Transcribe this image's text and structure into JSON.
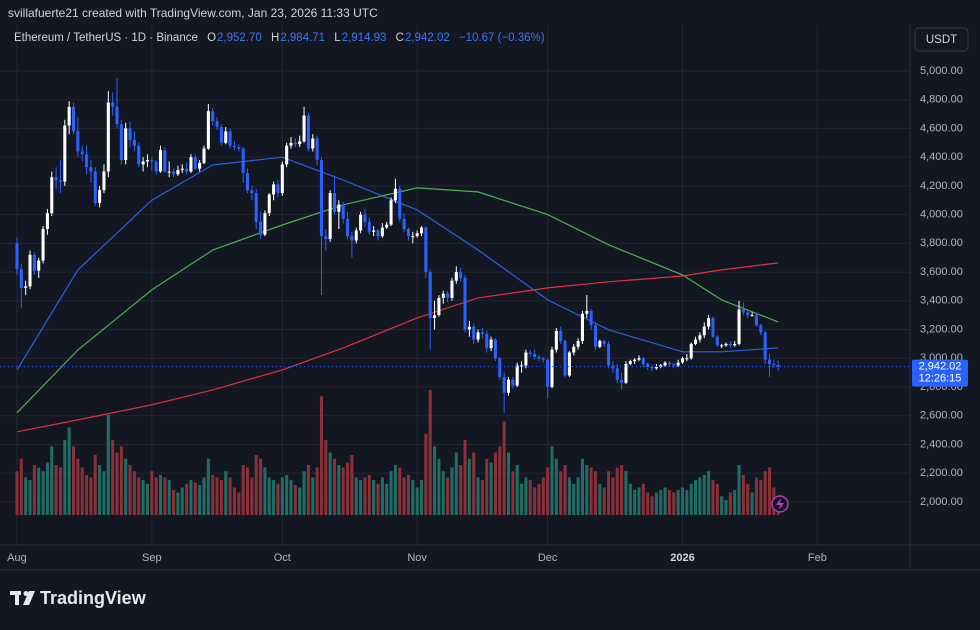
{
  "header": {
    "credit": "svillafuerte21 created with TradingView.com, Jan 23, 2026 11:33 UTC",
    "symbol": "Ethereum / TetherUS · 1D · Binance",
    "o_label": "O",
    "o": "2,952.70",
    "h_label": "H",
    "h": "2,984.71",
    "l_label": "L",
    "l": "2,914.93",
    "c_label": "C",
    "c": "2,942.02",
    "change": "−10.67 (−0.36%)",
    "currency": "USDT",
    "logo": "TradingView"
  },
  "chart_data": {
    "type": "candlestick",
    "up_color": "#ffffff",
    "down_color": "#2962ff",
    "volume_up_color": "#1f6e66",
    "volume_down_color": "#8a3038",
    "xlim": [
      -3.9,
      205.3
    ],
    "ylim": [
      1700,
      5320
    ],
    "vlim": [
      0,
      100
    ],
    "grid": true,
    "xticks": [
      {
        "value": 0,
        "label": "Aug"
      },
      {
        "value": 31,
        "label": "Sep"
      },
      {
        "value": 61,
        "label": "Oct"
      },
      {
        "value": 92,
        "label": "Nov"
      },
      {
        "value": 122,
        "label": "Dec"
      },
      {
        "value": 153,
        "label": "2026"
      },
      {
        "value": 184,
        "label": "Feb"
      }
    ],
    "yticks": [
      {
        "value": 2000,
        "label": "2,000.00"
      },
      {
        "value": 2200,
        "label": "2,200.00"
      },
      {
        "value": 2400,
        "label": "2,400.00"
      },
      {
        "value": 2600,
        "label": "2,600.00"
      },
      {
        "value": 2800,
        "label": "2,800.00"
      },
      {
        "value": 3000,
        "label": "3,000.00"
      },
      {
        "value": 3200,
        "label": "3,200.00"
      },
      {
        "value": 3400,
        "label": "3,400.00"
      },
      {
        "value": 3600,
        "label": "3,600.00"
      },
      {
        "value": 3800,
        "label": "3,800.00"
      },
      {
        "value": 4000,
        "label": "4,000.00"
      },
      {
        "value": 4200,
        "label": "4,200.00"
      },
      {
        "value": 4400,
        "label": "4,400.00"
      },
      {
        "value": 4600,
        "label": "4,600.00"
      },
      {
        "value": 4800,
        "label": "4,800.00"
      },
      {
        "value": 5000,
        "label": "5,000.00"
      }
    ],
    "last_price": {
      "value": 2942.02,
      "label": "2,942.02"
    },
    "countdown": "12:26:15",
    "ohlc": [
      [
        3800,
        3840,
        3580,
        3620
      ],
      [
        3620,
        3660,
        3350,
        3490
      ],
      [
        3490,
        3540,
        3440,
        3500
      ],
      [
        3500,
        3750,
        3480,
        3720
      ],
      [
        3720,
        3740,
        3580,
        3610
      ],
      [
        3610,
        3700,
        3560,
        3680
      ],
      [
        3680,
        3920,
        3660,
        3900
      ],
      [
        3900,
        4040,
        3860,
        4010
      ],
      [
        4010,
        4300,
        3990,
        4260
      ],
      [
        4260,
        4330,
        4180,
        4240
      ],
      [
        4240,
        4380,
        4150,
        4230
      ],
      [
        4230,
        4660,
        4200,
        4620
      ],
      [
        4620,
        4790,
        4560,
        4750
      ],
      [
        4750,
        4780,
        4560,
        4580
      ],
      [
        4580,
        4680,
        4400,
        4440
      ],
      [
        4440,
        4480,
        4370,
        4420
      ],
      [
        4420,
        4480,
        4280,
        4330
      ],
      [
        4330,
        4380,
        4220,
        4300
      ],
      [
        4300,
        4330,
        4060,
        4080
      ],
      [
        4080,
        4200,
        4050,
        4170
      ],
      [
        4170,
        4350,
        4150,
        4300
      ],
      [
        4300,
        4860,
        4260,
        4780
      ],
      [
        4780,
        4850,
        4690,
        4750
      ],
      [
        4750,
        4950,
        4600,
        4630
      ],
      [
        4630,
        4660,
        4350,
        4380
      ],
      [
        4380,
        4640,
        4350,
        4600
      ],
      [
        4600,
        4650,
        4470,
        4520
      ],
      [
        4520,
        4580,
        4440,
        4480
      ],
      [
        4480,
        4500,
        4330,
        4350
      ],
      [
        4350,
        4400,
        4300,
        4370
      ],
      [
        4370,
        4420,
        4330,
        4380
      ],
      [
        4380,
        4400,
        4310,
        4370
      ],
      [
        4370,
        4380,
        4280,
        4300
      ],
      [
        4300,
        4480,
        4290,
        4450
      ],
      [
        4450,
        4470,
        4290,
        4300
      ],
      [
        4300,
        4370,
        4260,
        4300
      ],
      [
        4300,
        4320,
        4260,
        4280
      ],
      [
        4280,
        4340,
        4270,
        4310
      ],
      [
        4310,
        4350,
        4290,
        4320
      ],
      [
        4320,
        4360,
        4280,
        4300
      ],
      [
        4300,
        4420,
        4290,
        4400
      ],
      [
        4400,
        4420,
        4310,
        4320
      ],
      [
        4320,
        4380,
        4300,
        4360
      ],
      [
        4360,
        4480,
        4350,
        4460
      ],
      [
        4460,
        4770,
        4450,
        4720
      ],
      [
        4720,
        4740,
        4620,
        4650
      ],
      [
        4650,
        4680,
        4590,
        4610
      ],
      [
        4610,
        4630,
        4480,
        4500
      ],
      [
        4500,
        4610,
        4490,
        4580
      ],
      [
        4580,
        4600,
        4460,
        4480
      ],
      [
        4480,
        4510,
        4450,
        4470
      ],
      [
        4470,
        4490,
        4440,
        4460
      ],
      [
        4460,
        4470,
        4220,
        4290
      ],
      [
        4290,
        4320,
        4150,
        4170
      ],
      [
        4170,
        4200,
        4100,
        4150
      ],
      [
        4150,
        4180,
        3900,
        3950
      ],
      [
        3950,
        4020,
        3830,
        3860
      ],
      [
        3860,
        4030,
        3850,
        4010
      ],
      [
        4010,
        4150,
        3990,
        4140
      ],
      [
        4140,
        4230,
        4100,
        4210
      ],
      [
        4210,
        4240,
        4120,
        4150
      ],
      [
        4150,
        4370,
        4130,
        4350
      ],
      [
        4350,
        4500,
        4330,
        4480
      ],
      [
        4480,
        4540,
        4460,
        4500
      ],
      [
        4500,
        4530,
        4470,
        4490
      ],
      [
        4490,
        4550,
        4470,
        4510
      ],
      [
        4510,
        4750,
        4500,
        4690
      ],
      [
        4690,
        4710,
        4440,
        4460
      ],
      [
        4460,
        4560,
        4440,
        4530
      ],
      [
        4530,
        4550,
        4340,
        4380
      ],
      [
        4380,
        4400,
        3440,
        3850
      ],
      [
        3850,
        3900,
        3750,
        3830
      ],
      [
        3830,
        4170,
        3810,
        4150
      ],
      [
        4150,
        4270,
        4000,
        4020
      ],
      [
        4020,
        4100,
        3900,
        4070
      ],
      [
        4070,
        4090,
        3940,
        3970
      ],
      [
        3970,
        4020,
        3830,
        3850
      ],
      [
        3850,
        3880,
        3700,
        3820
      ],
      [
        3820,
        3910,
        3800,
        3890
      ],
      [
        3890,
        4020,
        3870,
        4000
      ],
      [
        4000,
        4040,
        3910,
        3950
      ],
      [
        3950,
        3980,
        3860,
        3880
      ],
      [
        3880,
        3920,
        3850,
        3890
      ],
      [
        3890,
        3900,
        3820,
        3850
      ],
      [
        3850,
        3940,
        3840,
        3910
      ],
      [
        3910,
        3950,
        3900,
        3930
      ],
      [
        3930,
        4120,
        3920,
        4100
      ],
      [
        4100,
        4250,
        4080,
        4180
      ],
      [
        4180,
        4200,
        3950,
        3970
      ],
      [
        3970,
        4010,
        3880,
        3900
      ],
      [
        3900,
        3910,
        3820,
        3850
      ],
      [
        3850,
        3880,
        3800,
        3850
      ],
      [
        3850,
        3890,
        3840,
        3870
      ],
      [
        3870,
        3920,
        3850,
        3910
      ],
      [
        3910,
        3920,
        3560,
        3600
      ],
      [
        3600,
        3620,
        3060,
        3280
      ],
      [
        3280,
        3400,
        3200,
        3300
      ],
      [
        3300,
        3440,
        3290,
        3420
      ],
      [
        3420,
        3470,
        3380,
        3450
      ],
      [
        3450,
        3470,
        3390,
        3420
      ],
      [
        3420,
        3560,
        3400,
        3540
      ],
      [
        3540,
        3640,
        3520,
        3600
      ],
      [
        3600,
        3630,
        3530,
        3560
      ],
      [
        3560,
        3580,
        3180,
        3200
      ],
      [
        3200,
        3260,
        3150,
        3220
      ],
      [
        3220,
        3240,
        3100,
        3130
      ],
      [
        3130,
        3200,
        3110,
        3180
      ],
      [
        3180,
        3210,
        3140,
        3170
      ],
      [
        3170,
        3190,
        3040,
        3070
      ],
      [
        3070,
        3150,
        3050,
        3130
      ],
      [
        3130,
        3140,
        2980,
        3000
      ],
      [
        3000,
        3010,
        2850,
        2870
      ],
      [
        2870,
        2900,
        2620,
        2760
      ],
      [
        2760,
        2870,
        2740,
        2850
      ],
      [
        2850,
        2870,
        2790,
        2810
      ],
      [
        2810,
        2970,
        2800,
        2950
      ],
      [
        2950,
        2980,
        2900,
        2950
      ],
      [
        2950,
        3060,
        2930,
        3040
      ],
      [
        3040,
        3060,
        3010,
        3030
      ],
      [
        3030,
        3060,
        2990,
        3010
      ],
      [
        3010,
        3020,
        2980,
        3000
      ],
      [
        3000,
        3010,
        2970,
        2990
      ],
      [
        2990,
        3000,
        2720,
        2800
      ],
      [
        2800,
        3080,
        2790,
        3060
      ],
      [
        3060,
        3210,
        3040,
        3190
      ],
      [
        3190,
        3220,
        3100,
        3120
      ],
      [
        3120,
        3130,
        2870,
        2880
      ],
      [
        2880,
        3050,
        2870,
        3040
      ],
      [
        3040,
        3100,
        3020,
        3080
      ],
      [
        3080,
        3140,
        3060,
        3120
      ],
      [
        3120,
        3330,
        3100,
        3310
      ],
      [
        3310,
        3440,
        3280,
        3330
      ],
      [
        3330,
        3340,
        3200,
        3230
      ],
      [
        3230,
        3250,
        3060,
        3080
      ],
      [
        3080,
        3130,
        3070,
        3120
      ],
      [
        3120,
        3130,
        3080,
        3100
      ],
      [
        3100,
        3120,
        2930,
        2950
      ],
      [
        2950,
        2980,
        2900,
        2930
      ],
      [
        2930,
        2960,
        2830,
        2850
      ],
      [
        2850,
        2900,
        2780,
        2830
      ],
      [
        2830,
        2980,
        2820,
        2960
      ],
      [
        2960,
        2990,
        2950,
        2980
      ],
      [
        2980,
        3000,
        2960,
        2990
      ],
      [
        2990,
        3020,
        2980,
        3000
      ],
      [
        3000,
        3010,
        2940,
        2960
      ],
      [
        2960,
        2970,
        2920,
        2940
      ],
      [
        2940,
        2950,
        2910,
        2930
      ],
      [
        2930,
        2960,
        2920,
        2940
      ],
      [
        2940,
        2960,
        2930,
        2950
      ],
      [
        2950,
        2980,
        2940,
        2970
      ],
      [
        2970,
        2980,
        2940,
        2960
      ],
      [
        2960,
        2970,
        2930,
        2950
      ],
      [
        2950,
        2990,
        2940,
        2970
      ],
      [
        2970,
        3010,
        2960,
        3000
      ],
      [
        3000,
        3030,
        2980,
        3000
      ],
      [
        3000,
        3110,
        2990,
        3100
      ],
      [
        3100,
        3150,
        3090,
        3130
      ],
      [
        3130,
        3180,
        3110,
        3160
      ],
      [
        3160,
        3250,
        3140,
        3220
      ],
      [
        3220,
        3300,
        3200,
        3280
      ],
      [
        3280,
        3290,
        3140,
        3150
      ],
      [
        3150,
        3160,
        3080,
        3090
      ],
      [
        3090,
        3100,
        3070,
        3090
      ],
      [
        3090,
        3110,
        3080,
        3100
      ],
      [
        3100,
        3120,
        3070,
        3090
      ],
      [
        3090,
        3120,
        3080,
        3100
      ],
      [
        3100,
        3400,
        3090,
        3340
      ],
      [
        3340,
        3390,
        3300,
        3320
      ],
      [
        3320,
        3340,
        3280,
        3300
      ],
      [
        3300,
        3320,
        3290,
        3300
      ],
      [
        3300,
        3310,
        3220,
        3230
      ],
      [
        3230,
        3240,
        3160,
        3180
      ],
      [
        3180,
        3190,
        2960,
        2990
      ],
      [
        2990,
        3030,
        2870,
        2960
      ],
      [
        2960,
        2990,
        2930,
        2952.7
      ],
      [
        2952.7,
        2984.71,
        2914.93,
        2942.02
      ]
    ],
    "volume": [
      35,
      45,
      30,
      28,
      40,
      38,
      35,
      42,
      55,
      40,
      38,
      60,
      70,
      55,
      45,
      38,
      32,
      30,
      48,
      40,
      35,
      80,
      60,
      50,
      55,
      45,
      40,
      35,
      30,
      28,
      25,
      35,
      30,
      32,
      30,
      28,
      20,
      18,
      22,
      25,
      28,
      26,
      24,
      30,
      45,
      32,
      30,
      28,
      35,
      30,
      22,
      18,
      40,
      38,
      30,
      48,
      45,
      38,
      30,
      28,
      25,
      30,
      32,
      28,
      24,
      22,
      35,
      40,
      30,
      38,
      95,
      60,
      50,
      45,
      40,
      38,
      42,
      48,
      30,
      28,
      30,
      32,
      28,
      25,
      30,
      25,
      35,
      40,
      38,
      30,
      32,
      28,
      22,
      28,
      65,
      100,
      55,
      45,
      35,
      30,
      38,
      50,
      40,
      60,
      45,
      50,
      30,
      28,
      45,
      42,
      50,
      55,
      75,
      50,
      35,
      40,
      25,
      30,
      28,
      22,
      25,
      30,
      38,
      55,
      45,
      35,
      40,
      30,
      25,
      30,
      45,
      40,
      38,
      35,
      25,
      22,
      35,
      30,
      38,
      40,
      35,
      25,
      20,
      22,
      25,
      18,
      15,
      18,
      20,
      22,
      20,
      18,
      20,
      22,
      20,
      25,
      28,
      30,
      32,
      35,
      28,
      25,
      15,
      12,
      18,
      20,
      40,
      32,
      25,
      18,
      30,
      28,
      35,
      38,
      22,
      10
    ],
    "series": [
      {
        "color": "#2f5fe0",
        "x": [
          0,
          14,
          31,
          45,
          61,
          75,
          92,
          106,
          122,
          136,
          153,
          162,
          175
        ],
        "values": [
          2919,
          3615,
          4100,
          4346,
          4400,
          4240,
          4033,
          3754,
          3406,
          3198,
          3045,
          3045,
          3072
        ]
      },
      {
        "color": "#4caf50",
        "x": [
          0,
          14,
          31,
          45,
          61,
          75,
          92,
          106,
          122,
          136,
          153,
          162,
          175
        ],
        "values": [
          2620,
          3058,
          3476,
          3754,
          3928,
          4068,
          4186,
          4158,
          4000,
          3790,
          3580,
          3406,
          3253
        ]
      },
      {
        "color": "#e0323f",
        "x": [
          0,
          14,
          31,
          45,
          61,
          75,
          92,
          106,
          122,
          136,
          153,
          162,
          175
        ],
        "values": [
          2488,
          2571,
          2676,
          2780,
          2919,
          3072,
          3281,
          3420,
          3490,
          3532,
          3573,
          3615,
          3664
        ]
      }
    ]
  }
}
